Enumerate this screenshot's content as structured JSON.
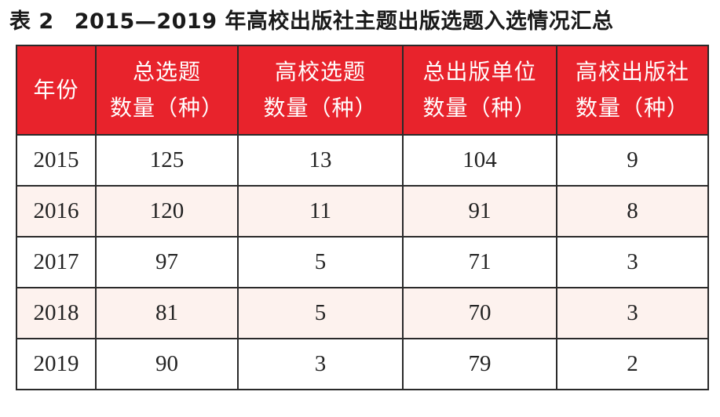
{
  "caption": {
    "label": "表 2",
    "title": "2015—2019 年高校出版社主题出版选题入选情况汇总"
  },
  "table": {
    "headers": [
      {
        "line1": "年份",
        "line2": ""
      },
      {
        "line1": "总选题",
        "line2": "数量（种）"
      },
      {
        "line1": "高校选题",
        "line2": "数量（种）"
      },
      {
        "line1": "总出版单位",
        "line2": "数量（种）"
      },
      {
        "line1": "高校出版社",
        "line2": "数量（种）"
      }
    ],
    "rows": [
      [
        "2015",
        "125",
        "13",
        "104",
        "9"
      ],
      [
        "2016",
        "120",
        "11",
        "91",
        "8"
      ],
      [
        "2017",
        "97",
        "5",
        "71",
        "3"
      ],
      [
        "2018",
        "81",
        "5",
        "70",
        "3"
      ],
      [
        "2019",
        "90",
        "3",
        "79",
        "2"
      ]
    ]
  },
  "colors": {
    "header_bg": "#e8232c",
    "header_text": "#ffffff",
    "border": "#2a2a2a",
    "stripe": "#fdf2ee"
  }
}
